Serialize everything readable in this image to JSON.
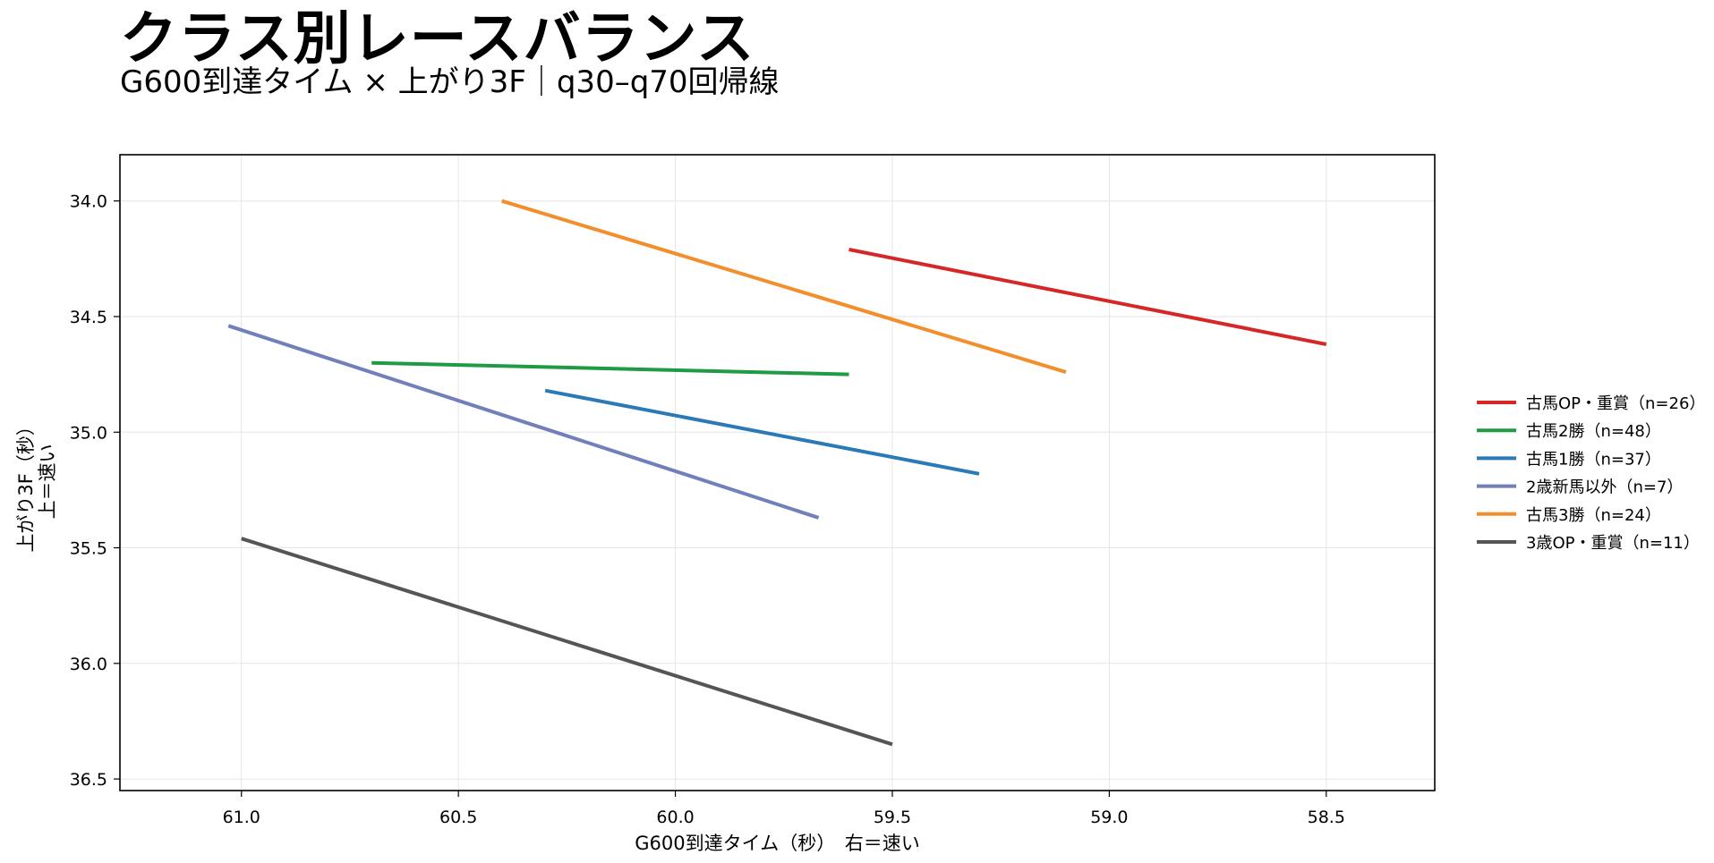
{
  "chart_data": {
    "type": "line",
    "title": "クラス別レースバランス",
    "subtitle": "G600到達タイム × 上がり3F｜q30–q70回帰線",
    "xlabel": "G600到達タイム（秒）　右＝速い",
    "ylabel": [
      "上がり3F（秒）",
      "上＝速い"
    ],
    "xlim": [
      61.28,
      58.25
    ],
    "ylim": [
      36.55,
      33.8
    ],
    "x_inverted": true,
    "y_inverted": true,
    "xticks": [
      61.0,
      60.5,
      60.0,
      59.5,
      59.0,
      58.5
    ],
    "yticks": [
      34.0,
      34.5,
      35.0,
      35.5,
      36.0,
      36.5
    ],
    "grid": true,
    "legend_position": "outside-right",
    "series": [
      {
        "name": "古馬OP・重賞（n=26）",
        "color": "#d62728",
        "x": [
          59.6,
          58.5
        ],
        "y": [
          34.21,
          34.62
        ]
      },
      {
        "name": "古馬2勝（n=48）",
        "color": "#1f9a45",
        "x": [
          60.7,
          59.6
        ],
        "y": [
          34.7,
          34.75
        ]
      },
      {
        "name": "古馬1勝（n=37）",
        "color": "#2a7ab8",
        "x": [
          60.3,
          59.3
        ],
        "y": [
          34.82,
          35.18
        ]
      },
      {
        "name": "2歳新馬以外（n=7）",
        "color": "#717fbb",
        "x": [
          61.03,
          59.67
        ],
        "y": [
          34.54,
          35.37
        ]
      },
      {
        "name": "古馬3勝（n=24）",
        "color": "#f28e2b",
        "x": [
          60.4,
          59.1
        ],
        "y": [
          34.0,
          34.74
        ]
      },
      {
        "name": "3歳OP・重賞（n=11）",
        "color": "#555555",
        "x": [
          61.0,
          59.5
        ],
        "y": [
          35.46,
          36.35
        ]
      }
    ]
  }
}
